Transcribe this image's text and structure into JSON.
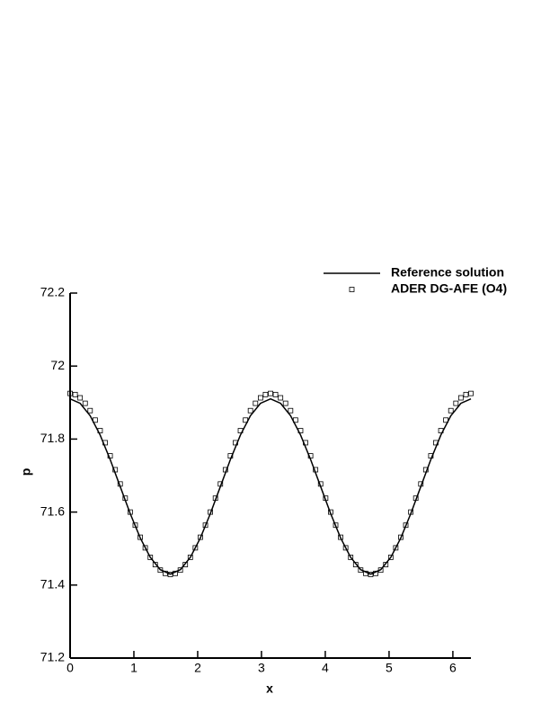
{
  "chart_data": {
    "type": "line",
    "xlabel": "x",
    "ylabel": "p",
    "xlim": [
      0,
      6.283
    ],
    "ylim": [
      71.2,
      72.2
    ],
    "xticks": [
      0,
      1,
      2,
      3,
      4,
      5,
      6
    ],
    "yticks": [
      71.2,
      71.4,
      71.6,
      71.8,
      72,
      72.2
    ],
    "legend": "top-right",
    "series": [
      {
        "name": "Reference solution",
        "color": "#000000",
        "style": "line",
        "x": [
          0,
          0.157,
          0.314,
          0.471,
          0.628,
          0.785,
          0.942,
          1.1,
          1.257,
          1.414,
          1.571,
          1.728,
          1.885,
          2.042,
          2.199,
          2.356,
          2.513,
          2.67,
          2.827,
          2.985,
          3.142,
          3.299,
          3.456,
          3.613,
          3.77,
          3.927,
          4.084,
          4.241,
          4.398,
          4.555,
          4.712,
          4.869,
          5.027,
          5.184,
          5.341,
          5.498,
          5.655,
          5.812,
          5.969,
          6.126,
          6.283
        ],
        "values": [
          71.91,
          71.898,
          71.864,
          71.811,
          71.744,
          71.67,
          71.596,
          71.529,
          71.476,
          71.442,
          71.43,
          71.442,
          71.476,
          71.529,
          71.596,
          71.67,
          71.744,
          71.811,
          71.864,
          71.898,
          71.91,
          71.898,
          71.864,
          71.811,
          71.744,
          71.67,
          71.596,
          71.529,
          71.476,
          71.442,
          71.43,
          71.442,
          71.476,
          71.529,
          71.596,
          71.67,
          71.744,
          71.811,
          71.864,
          71.898,
          71.91
        ]
      },
      {
        "name": "ADER DG-AFE (O4)",
        "color": "#000000",
        "style": "square",
        "x": [
          0,
          0.079,
          0.157,
          0.236,
          0.314,
          0.393,
          0.471,
          0.55,
          0.628,
          0.707,
          0.785,
          0.864,
          0.942,
          1.021,
          1.1,
          1.178,
          1.257,
          1.335,
          1.414,
          1.492,
          1.571,
          1.649,
          1.728,
          1.806,
          1.885,
          1.963,
          2.042,
          2.121,
          2.199,
          2.278,
          2.356,
          2.435,
          2.513,
          2.592,
          2.67,
          2.749,
          2.827,
          2.906,
          2.985,
          3.063,
          3.142,
          3.22,
          3.299,
          3.377,
          3.456,
          3.534,
          3.613,
          3.691,
          3.77,
          3.848,
          3.927,
          4.006,
          4.084,
          4.163,
          4.241,
          4.32,
          4.398,
          4.477,
          4.555,
          4.634,
          4.712,
          4.791,
          4.869,
          4.948,
          5.027,
          5.105,
          5.184,
          5.262,
          5.341,
          5.419,
          5.498,
          5.576,
          5.655,
          5.733,
          5.812,
          5.89,
          5.969,
          6.048,
          6.126,
          6.205,
          6.283
        ],
        "values": [
          71.925,
          71.922,
          71.913,
          71.898,
          71.878,
          71.852,
          71.823,
          71.79,
          71.754,
          71.716,
          71.677,
          71.638,
          71.6,
          71.564,
          71.531,
          71.502,
          71.476,
          71.456,
          71.441,
          71.432,
          71.429,
          71.432,
          71.441,
          71.456,
          71.476,
          71.502,
          71.531,
          71.564,
          71.6,
          71.638,
          71.677,
          71.716,
          71.754,
          71.79,
          71.823,
          71.852,
          71.878,
          71.898,
          71.913,
          71.922,
          71.925,
          71.922,
          71.913,
          71.898,
          71.878,
          71.852,
          71.823,
          71.79,
          71.754,
          71.716,
          71.677,
          71.638,
          71.6,
          71.564,
          71.531,
          71.502,
          71.476,
          71.456,
          71.441,
          71.432,
          71.429,
          71.432,
          71.441,
          71.456,
          71.476,
          71.502,
          71.531,
          71.564,
          71.6,
          71.638,
          71.677,
          71.716,
          71.754,
          71.79,
          71.823,
          71.852,
          71.878,
          71.898,
          71.913,
          71.922,
          71.925
        ]
      }
    ]
  }
}
